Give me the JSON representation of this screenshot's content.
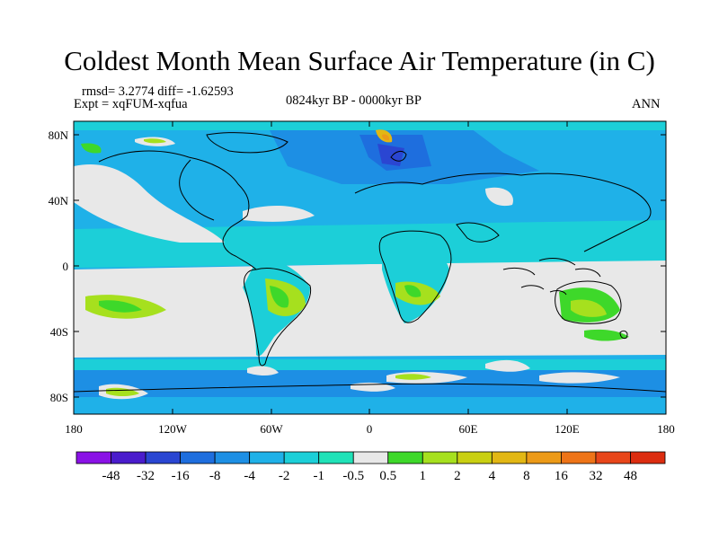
{
  "title": "Coldest Month Mean Surface Air Temperature (in C)",
  "stats_line": "rmsd= 3.2774  diff= -1.62593",
  "expt_line": "Expt = xqFUM-xqfua",
  "period_label": "0824kyr BP - 0000kyr BP",
  "season_label": "ANN",
  "lat_labels": [
    "80N",
    "40N",
    "0",
    "40S",
    "80S"
  ],
  "lon_labels": [
    "180",
    "120W",
    "60W",
    "0",
    "60E",
    "120E",
    "180"
  ],
  "colorbar": {
    "labels": [
      "-48",
      "-32",
      "-16",
      "-8",
      "-4",
      "-2",
      "-1",
      "-0.5",
      "0.5",
      "1",
      "2",
      "4",
      "8",
      "16",
      "32",
      "48"
    ],
    "colors": [
      "#8a12e6",
      "#4a1ccc",
      "#2a46d2",
      "#1e6ede",
      "#1d8fe4",
      "#1fb1e8",
      "#1ccfd8",
      "#20e2b8",
      "#e8e8e8",
      "#3ed82a",
      "#a6e01e",
      "#c9cf12",
      "#e2b714",
      "#ec9a18",
      "#ee7418",
      "#e8461a",
      "#dc2d10"
    ]
  }
}
